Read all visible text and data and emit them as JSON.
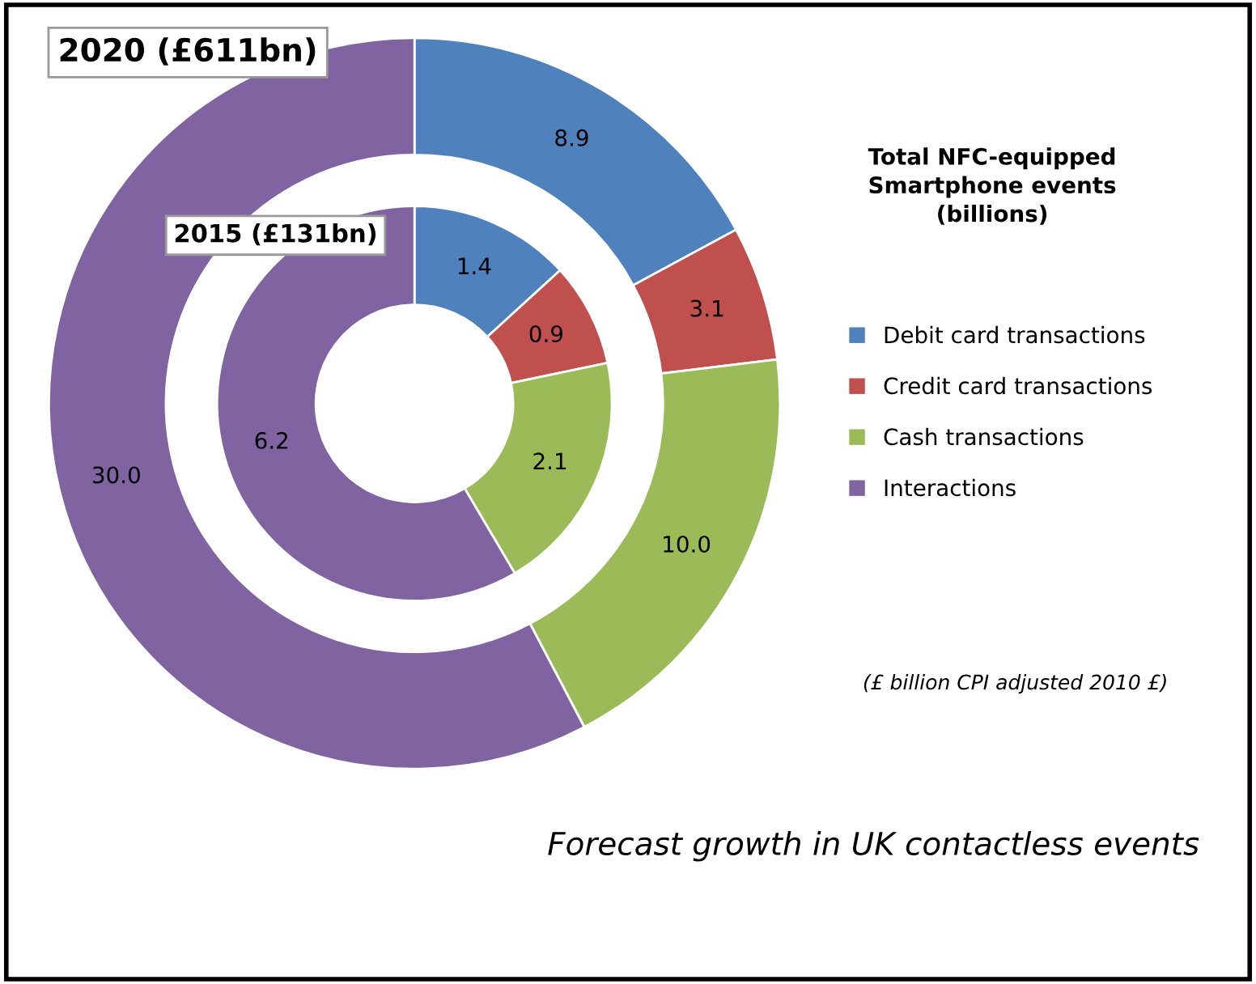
{
  "chart_data": {
    "type": "donut",
    "legend_title": "Total NFC-equipped\nSmartphone events\n(billions)",
    "categories": [
      "Debit card transactions",
      "Credit card transactions",
      "Cash transactions",
      "Interactions"
    ],
    "colors": [
      "#4f81bd",
      "#c0504d",
      "#9bbb59",
      "#8064a2"
    ],
    "series": [
      {
        "name": "2020 (£611bn)",
        "values": [
          8.9,
          3.1,
          10.0,
          30.0
        ],
        "value_labels": [
          "8.9",
          "3.1",
          "10.0",
          "30.0"
        ]
      },
      {
        "name": "2015 (£131bn)",
        "values": [
          1.4,
          0.9,
          2.1,
          6.2
        ],
        "value_labels": [
          "1.4",
          "0.9",
          "2.1",
          "6.2"
        ]
      }
    ],
    "legend": "right",
    "annotations": [
      "(£ billion CPI adjusted 2010 £)",
      "Forecast growth in UK contactless events"
    ]
  }
}
